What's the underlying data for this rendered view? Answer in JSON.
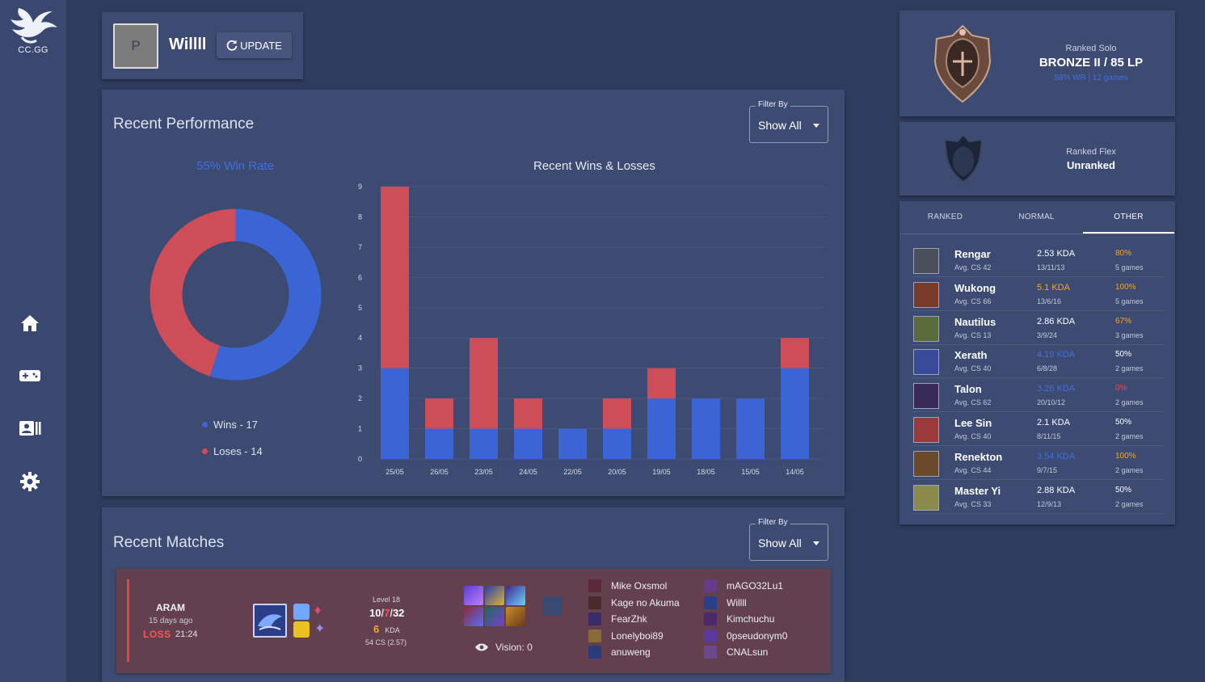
{
  "app": {
    "logo_text": "CC.GG"
  },
  "nav": [
    {
      "name": "home-icon"
    },
    {
      "name": "gamepad-icon"
    },
    {
      "name": "profile-card-icon"
    },
    {
      "name": "gear-icon"
    }
  ],
  "profile": {
    "avatar_letter": "P",
    "name": "Willll",
    "update_label": "UPDATE"
  },
  "performance": {
    "title": "Recent Performance",
    "filter_label": "Filter By",
    "filter_value": "Show All",
    "win_rate": "55% Win Rate",
    "wins_legend": "Wins - 17",
    "losses_legend": "Loses - 14",
    "chart_title": "Recent Wins & Losses"
  },
  "colors": {
    "win": "#3b64d4",
    "loss": "#cf4d58",
    "accent_orange": "#f5a623",
    "accent_blue": "#3f6fe0"
  },
  "chart_data": [
    {
      "type": "pie",
      "title": "55% Win Rate",
      "categories": [
        "Wins - 17",
        "Loses - 14"
      ],
      "values": [
        17,
        14
      ]
    },
    {
      "type": "bar",
      "stacked": true,
      "title": "Recent Wins & Losses",
      "categories": [
        "25/05",
        "26/05",
        "23/05",
        "24/05",
        "22/05",
        "20/05",
        "19/05",
        "18/05",
        "15/05",
        "14/05"
      ],
      "series": [
        {
          "name": "Wins",
          "values": [
            3,
            1,
            1,
            1,
            1,
            1,
            2,
            2,
            2,
            3
          ]
        },
        {
          "name": "Loses",
          "values": [
            6,
            1,
            3,
            1,
            0,
            1,
            1,
            0,
            0,
            1
          ]
        }
      ],
      "yticks": [
        "0",
        "1",
        "2",
        "3",
        "4",
        "5",
        "6",
        "7",
        "8",
        "9"
      ],
      "ylim": [
        0,
        9
      ],
      "grid": true
    }
  ],
  "matches": {
    "title": "Recent Matches",
    "filter_label": "Filter By",
    "filter_value": "Show All",
    "list": [
      {
        "mode": "ARAM",
        "ago": "15 days ago",
        "result": "LOSS",
        "duration": "21:24",
        "level": "Level 18",
        "kills": "10",
        "deaths": "7",
        "assists": "32",
        "kda_ratio": "6",
        "kda_label": "KDA",
        "cs": "54 CS (2.57)",
        "vision": "Vision: 0",
        "team1": [
          "Mike Oxsmol",
          "Kage no Akuma",
          "FearZhk",
          "Lonelyboi89",
          "anuweng"
        ],
        "team2": [
          "mAGO32Lu1",
          "Willll",
          "Kimchuchu",
          "0pseudonym0",
          "CNALsun"
        ]
      }
    ]
  },
  "ranks": {
    "solo": {
      "label": "Ranked Solo",
      "value": "BRONZE II / 85 LP",
      "sub": "58% WR | 12 games"
    },
    "flex": {
      "label": "Ranked Flex",
      "value": "Unranked"
    }
  },
  "champion_tabs": [
    "RANKED",
    "NORMAL",
    "OTHER"
  ],
  "active_tab": "OTHER",
  "champions": [
    {
      "name": "Rengar",
      "cs": "Avg. CS 42",
      "kda": "2.53 KDA",
      "kda_tone": "white",
      "score": "13/11/13",
      "wr": "80%",
      "wr_tone": "orange",
      "games": "5 games"
    },
    {
      "name": "Wukong",
      "cs": "Avg. CS 66",
      "kda": "5.1 KDA",
      "kda_tone": "orange",
      "score": "13/6/16",
      "wr": "100%",
      "wr_tone": "orange",
      "games": "5 games"
    },
    {
      "name": "Nautilus",
      "cs": "Avg. CS 13",
      "kda": "2.86 KDA",
      "kda_tone": "white",
      "score": "3/9/24",
      "wr": "67%",
      "wr_tone": "orange",
      "games": "3 games"
    },
    {
      "name": "Xerath",
      "cs": "Avg. CS 40",
      "kda": "4.19 KDA",
      "kda_tone": "blue",
      "score": "6/8/28",
      "wr": "50%",
      "wr_tone": "white",
      "games": "2 games"
    },
    {
      "name": "Talon",
      "cs": "Avg. CS 62",
      "kda": "3.26 KDA",
      "kda_tone": "blue",
      "score": "20/10/12",
      "wr": "0%",
      "wr_tone": "red",
      "games": "2 games"
    },
    {
      "name": "Lee Sin",
      "cs": "Avg. CS 40",
      "kda": "2.1 KDA",
      "kda_tone": "white",
      "score": "8/11/15",
      "wr": "50%",
      "wr_tone": "white",
      "games": "2 games"
    },
    {
      "name": "Renekton",
      "cs": "Avg. CS 44",
      "kda": "3.54 KDA",
      "kda_tone": "blue",
      "score": "9/7/15",
      "wr": "100%",
      "wr_tone": "orange",
      "games": "2 games"
    },
    {
      "name": "Master Yi",
      "cs": "Avg. CS 33",
      "kda": "2.88 KDA",
      "kda_tone": "white",
      "score": "12/9/13",
      "wr": "50%",
      "wr_tone": "white",
      "games": "2 games"
    }
  ]
}
